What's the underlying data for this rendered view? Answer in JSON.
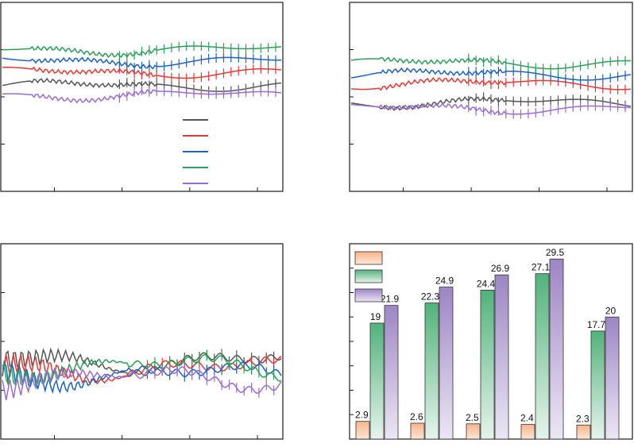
{
  "colors": {
    "black": "#555555",
    "red": "#e53935",
    "blue": "#1e62c0",
    "green": "#2e9e5a",
    "purple": "#9a6cd0",
    "bar_orange": "#f6b48a",
    "bar_green": "#52b27a",
    "bar_purple": "#9c86c4"
  },
  "chart_data": [
    {
      "panel": "top-left",
      "type": "line",
      "title": "",
      "xlabel": "",
      "ylabel": "",
      "ylim": [
        0,
        1
      ],
      "grid": false,
      "legend": "bottom-right, lines only, no labels",
      "series": [
        {
          "color": "black",
          "baseline": 0.56,
          "amplitude": 0.015
        },
        {
          "color": "red",
          "baseline": 0.63,
          "amplitude": 0.015
        },
        {
          "color": "blue",
          "baseline": 0.69,
          "amplitude": 0.015
        },
        {
          "color": "green",
          "baseline": 0.75,
          "amplitude": 0.015
        },
        {
          "color": "purple",
          "baseline": 0.51,
          "amplitude": 0.015
        }
      ]
    },
    {
      "panel": "top-right",
      "type": "line",
      "title": "",
      "xlabel": "",
      "ylabel": "",
      "ylim": [
        0,
        1
      ],
      "grid": false,
      "series": [
        {
          "color": "black",
          "baseline": 0.47,
          "amplitude": 0.015
        },
        {
          "color": "red",
          "baseline": 0.57,
          "amplitude": 0.015
        },
        {
          "color": "blue",
          "baseline": 0.62,
          "amplitude": 0.015
        },
        {
          "color": "green",
          "baseline": 0.68,
          "amplitude": 0.015
        },
        {
          "color": "purple",
          "baseline": 0.44,
          "amplitude": 0.015
        }
      ]
    },
    {
      "panel": "bottom-left",
      "type": "line",
      "title": "",
      "xlabel": "",
      "ylabel": "",
      "ylim": [
        0,
        1
      ],
      "grid": false,
      "series": [
        {
          "color": "black",
          "baseline": 0.4,
          "amplitude": 0.03
        },
        {
          "color": "red",
          "baseline": 0.36,
          "amplitude": 0.03
        },
        {
          "color": "blue",
          "baseline": 0.33,
          "amplitude": 0.03
        },
        {
          "color": "green",
          "baseline": 0.37,
          "amplitude": 0.03
        },
        {
          "color": "purple",
          "baseline": 0.31,
          "amplitude": 0.03
        }
      ]
    },
    {
      "panel": "bottom-right",
      "type": "bar",
      "title": "",
      "xlabel": "",
      "ylabel": "",
      "ylim": [
        0,
        32
      ],
      "grid": false,
      "legend": "top-left, swatches only, no labels",
      "categories": [
        "",
        "",
        "",
        "",
        ""
      ],
      "series": [
        {
          "color": "bar_orange",
          "values": [
            2.9,
            2.6,
            2.5,
            2.4,
            2.3
          ],
          "labels": [
            "2.9",
            "2.6",
            "2.5",
            "2.4",
            "2.3"
          ]
        },
        {
          "color": "bar_green",
          "values": [
            19,
            22.3,
            24.4,
            27.1,
            17.7
          ],
          "labels": [
            "19",
            "22.3",
            "24.4",
            "27.1",
            "17.7"
          ]
        },
        {
          "color": "bar_purple",
          "values": [
            21.9,
            24.9,
            26.9,
            29.5,
            20
          ],
          "labels": [
            "21.9",
            "24.9",
            "26.9",
            "29.5",
            "20"
          ]
        }
      ]
    }
  ]
}
